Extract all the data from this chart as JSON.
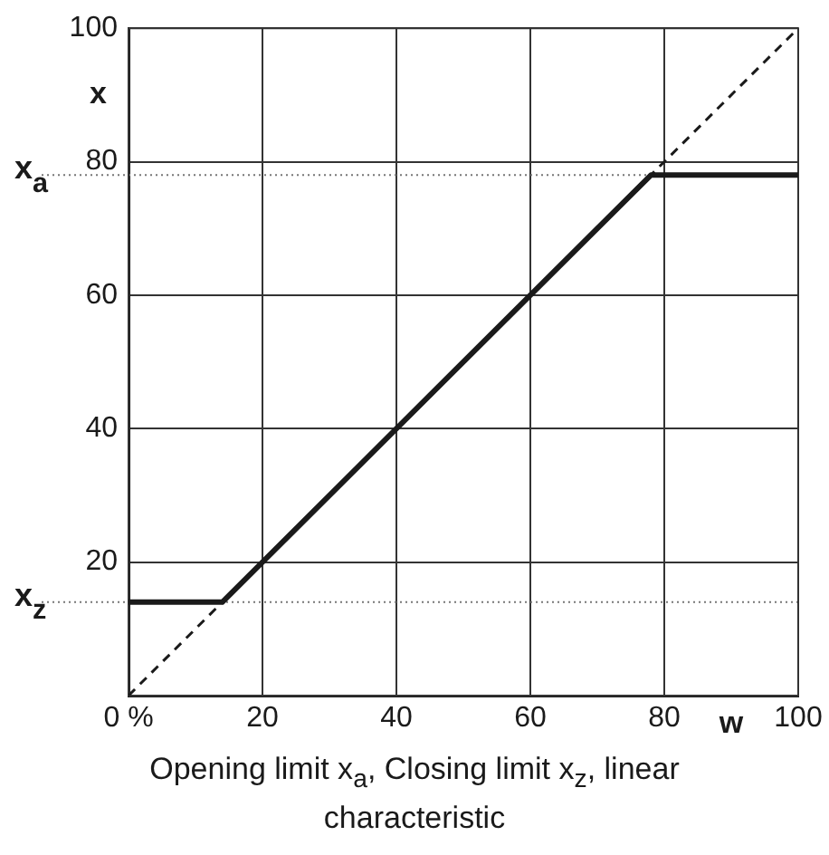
{
  "chart_data": {
    "type": "line",
    "xlabel": "w",
    "ylabel": "x",
    "xlim": [
      0,
      100
    ],
    "ylim": [
      0,
      100
    ],
    "xticks": [
      {
        "value": 0,
        "label": "0 %"
      },
      20,
      40,
      60,
      80,
      100
    ],
    "yticks": [
      20,
      40,
      60,
      80,
      100
    ],
    "series": [
      {
        "type": "line",
        "x": [
          0,
          14,
          78,
          100
        ],
        "values": [
          14,
          14,
          78,
          78
        ],
        "color": "#1a1a1a",
        "line_style": "solid"
      },
      {
        "type": "line",
        "x": [
          0,
          100
        ],
        "values": [
          0,
          100
        ],
        "color": "#1a1a1a",
        "line_style": "dashed"
      }
    ],
    "ref_lines": [
      {
        "axis": "y",
        "value": 78,
        "label": "x$_{a}$",
        "color": "#777777",
        "line_style": "dotted"
      },
      {
        "axis": "y",
        "value": 14,
        "label": "x$_{z}$",
        "color": "#777777",
        "line_style": "dotted"
      }
    ],
    "annotations": [
      "Opening limit x$_{a}$, Closing limit x$_{z}$, linear characteristic"
    ],
    "grid": true,
    "legend": false,
    "marker": "none"
  }
}
